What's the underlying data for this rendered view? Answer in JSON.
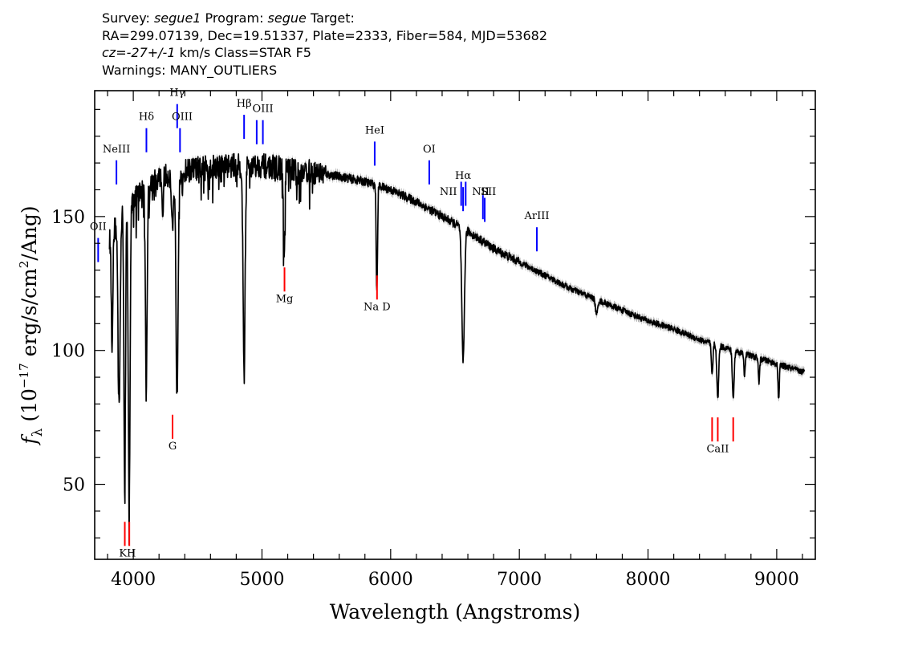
{
  "header": {
    "survey_prefix": "Survey: ",
    "survey": "segue1",
    "program_prefix": " Program: ",
    "program": "segue",
    "target_label": " Target:",
    "coords": "RA=299.07139, Dec=19.51337, Plate=2333, Fiber=584, MJD=53682",
    "cz_prefix": "cz",
    "cz_value": "=-27+/-1",
    "cz_units": " km/s Class=STAR F5",
    "warnings": "Warnings: MANY_OUTLIERS"
  },
  "colors": {
    "spectrum": "#000000",
    "error_band": "#b0b0b0",
    "emission": "#0000ff",
    "absorption": "#ff0000",
    "axis": "#000000"
  },
  "chart_data": {
    "type": "line",
    "xlabel": "Wavelength (Angstroms)",
    "ylabel": "f_λ (10^-17 erg/s/cm^2/Ang)",
    "ylabel_parts": {
      "f": "f",
      "sub": "λ",
      "pre": " (10",
      "exp": "−17",
      "mid": " erg/s/cm",
      "exp2": "2",
      "post": "/Ang)"
    },
    "xlim": [
      3700,
      9300
    ],
    "ylim": [
      22,
      197
    ],
    "x_ticks": [
      4000,
      5000,
      6000,
      7000,
      8000,
      9000
    ],
    "y_ticks": [
      50,
      100,
      150
    ],
    "grid": false,
    "continuum": [
      [
        3800,
        140
      ],
      [
        3900,
        150
      ],
      [
        4000,
        157
      ],
      [
        4100,
        161
      ],
      [
        4200,
        164
      ],
      [
        4300,
        166
      ],
      [
        4400,
        167
      ],
      [
        4500,
        168
      ],
      [
        4600,
        168.5
      ],
      [
        4700,
        169
      ],
      [
        4800,
        169
      ],
      [
        5000,
        169
      ],
      [
        5200,
        168
      ],
      [
        5400,
        166.5
      ],
      [
        5600,
        165
      ],
      [
        5800,
        163
      ],
      [
        6000,
        160
      ],
      [
        6200,
        155.5
      ],
      [
        6400,
        150
      ],
      [
        6600,
        144.5
      ],
      [
        6800,
        138
      ],
      [
        7000,
        133
      ],
      [
        7200,
        128
      ],
      [
        7400,
        123
      ],
      [
        7600,
        119
      ],
      [
        7800,
        115
      ],
      [
        8000,
        111
      ],
      [
        8200,
        108
      ],
      [
        8400,
        104
      ],
      [
        8600,
        101
      ],
      [
        8800,
        98
      ],
      [
        9000,
        95
      ],
      [
        9200,
        92
      ]
    ],
    "absorption_features": [
      {
        "x": 3835,
        "depth": 40,
        "w": 6
      },
      {
        "x": 3889,
        "depth": 70,
        "w": 8
      },
      {
        "x": 3933,
        "depth": 105,
        "w": 6
      },
      {
        "x": 3968,
        "depth": 112,
        "w": 7
      },
      {
        "x": 4101,
        "depth": 70,
        "w": 7
      },
      {
        "x": 4227,
        "depth": 14,
        "w": 4
      },
      {
        "x": 4305,
        "depth": 20,
        "w": 8
      },
      {
        "x": 4340,
        "depth": 82,
        "w": 8
      },
      {
        "x": 4383,
        "depth": 10,
        "w": 4
      },
      {
        "x": 4861,
        "depth": 77,
        "w": 8
      },
      {
        "x": 5169,
        "depth": 16,
        "w": 5
      },
      {
        "x": 5175,
        "depth": 24,
        "w": 5
      },
      {
        "x": 5270,
        "depth": 8,
        "w": 4
      },
      {
        "x": 5890,
        "depth": 28,
        "w": 4
      },
      {
        "x": 5896,
        "depth": 24,
        "w": 4
      },
      {
        "x": 6563,
        "depth": 50,
        "w": 10
      },
      {
        "x": 7600,
        "depth": 6,
        "w": 8
      },
      {
        "x": 8498,
        "depth": 12,
        "w": 6
      },
      {
        "x": 8542,
        "depth": 20,
        "w": 7
      },
      {
        "x": 8662,
        "depth": 18,
        "w": 7
      },
      {
        "x": 8750,
        "depth": 8,
        "w": 5
      },
      {
        "x": 8863,
        "depth": 9,
        "w": 5
      },
      {
        "x": 9015,
        "depth": 13,
        "w": 5
      }
    ],
    "x_start": 3815,
    "x_end": 9215,
    "emission_lines": [
      {
        "label": "OII",
        "x": 3727,
        "y0": 133,
        "y1": 142,
        "lx": 3727,
        "ly": 145
      },
      {
        "label": "NeIII",
        "x": 3869,
        "y0": 162,
        "y1": 171,
        "lx": 3869,
        "ly": 174
      },
      {
        "label": "Hδ",
        "x": 4102,
        "y0": 174,
        "y1": 183,
        "lx": 4102,
        "ly": 186
      },
      {
        "label": "Hγ",
        "x": 4341,
        "y0": 183,
        "y1": 192,
        "lx": 4341,
        "ly": 195
      },
      {
        "label": "OIII",
        "x": 4363,
        "y0": 174,
        "y1": 183,
        "lx": 4380,
        "ly": 186
      },
      {
        "label": "Hβ",
        "x": 4861,
        "y0": 179,
        "y1": 188,
        "lx": 4861,
        "ly": 191
      },
      {
        "label": "OIII",
        "x": 4959,
        "y0": 177,
        "y1": 186,
        "lx": 5007,
        "ly": 189
      },
      {
        "label": "",
        "x": 5007,
        "y0": 177,
        "y1": 186,
        "lx": 5007,
        "ly": 189
      },
      {
        "label": "HeI",
        "x": 5876,
        "y0": 169,
        "y1": 178,
        "lx": 5876,
        "ly": 181
      },
      {
        "label": "OI",
        "x": 6300,
        "y0": 162,
        "y1": 171,
        "lx": 6300,
        "ly": 174
      },
      {
        "label": "NII",
        "x": 6548,
        "y0": 154,
        "y1": 163,
        "lx": 6448,
        "ly": 158
      },
      {
        "label": "Hα",
        "x": 6563,
        "y0": 152,
        "y1": 161,
        "lx": 6563,
        "ly": 164
      },
      {
        "label": "",
        "x": 6583,
        "y0": 154,
        "y1": 163,
        "lx": 6583,
        "ly": 158
      },
      {
        "label": "NII",
        "x": 6717,
        "y0": 149,
        "y1": 158,
        "lx": 6700,
        "ly": 158
      },
      {
        "label": "SII",
        "x": 6731,
        "y0": 148,
        "y1": 157,
        "lx": 6760,
        "ly": 158
      },
      {
        "label": "ArIII",
        "x": 7136,
        "y0": 137,
        "y1": 146,
        "lx": 7136,
        "ly": 149
      }
    ],
    "absorption_lines": [
      {
        "label": "K",
        "x": 3934,
        "y0": 27,
        "y1": 36,
        "lx": 3920,
        "ly": 23
      },
      {
        "label": "H",
        "x": 3969,
        "y0": 27,
        "y1": 36,
        "lx": 3985,
        "ly": 23
      },
      {
        "label": "G",
        "x": 4305,
        "y0": 67,
        "y1": 76,
        "lx": 4305,
        "ly": 63
      },
      {
        "label": "Mg",
        "x": 5175,
        "y0": 122,
        "y1": 131,
        "lx": 5175,
        "ly": 118
      },
      {
        "label": "Na D",
        "x": 5894,
        "y0": 119,
        "y1": 128,
        "lx": 5894,
        "ly": 115
      },
      {
        "label": "CaII",
        "x": 8498,
        "y0": 66,
        "y1": 75,
        "lx": 8542,
        "ly": 62
      },
      {
        "label": "",
        "x": 8542,
        "y0": 66,
        "y1": 75,
        "lx": 8542,
        "ly": 62
      },
      {
        "label": "",
        "x": 8662,
        "y0": 66,
        "y1": 75,
        "lx": 8662,
        "ly": 62
      }
    ]
  }
}
